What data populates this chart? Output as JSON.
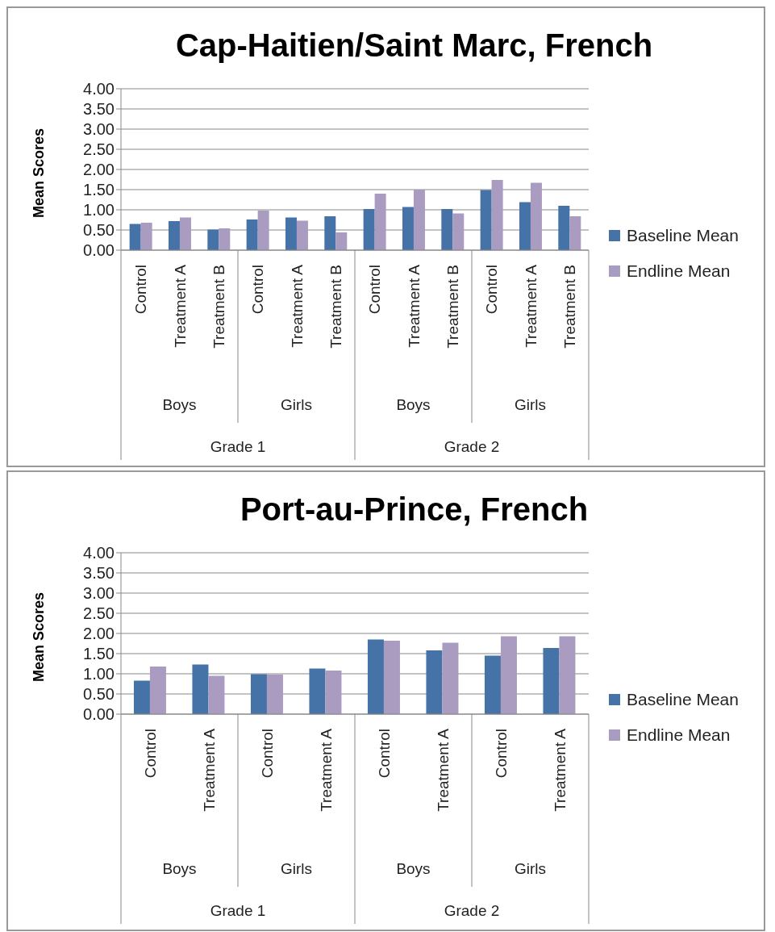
{
  "chart_data": [
    {
      "type": "bar",
      "title": "Cap-Haitien/Saint Marc, French",
      "ylabel": "Mean Scores",
      "categories": [
        "Control",
        "Treatment A",
        "Treatment B",
        "Control",
        "Treatment A",
        "Treatment B",
        "Control",
        "Treatment A",
        "Treatment B",
        "Control",
        "Treatment A",
        "Treatment B"
      ],
      "series": [
        {
          "name": "Baseline Mean",
          "color": "#4573a7",
          "values": [
            0.65,
            0.72,
            0.51,
            0.76,
            0.81,
            0.84,
            1.02,
            1.07,
            1.02,
            1.49,
            1.19,
            1.1
          ]
        },
        {
          "name": "Endline Mean",
          "color": "#aa9bc0",
          "values": [
            0.68,
            0.81,
            0.54,
            0.98,
            0.73,
            0.44,
            1.4,
            1.5,
            0.91,
            1.74,
            1.67,
            0.84
          ]
        }
      ],
      "annotations": [
        "Boys",
        "Girls",
        "Boys",
        "Girls",
        "Grade 1",
        "Grade 2"
      ],
      "ylim": [
        0,
        4
      ],
      "yticks": [
        {
          "value": 0,
          "label": "0.00"
        },
        {
          "value": 0.5,
          "label": "0.50"
        },
        {
          "value": 1,
          "label": "1.00"
        },
        {
          "value": 1.5,
          "label": "1.50"
        },
        {
          "value": 2,
          "label": "2.00"
        },
        {
          "value": 2.5,
          "label": "2.50"
        },
        {
          "value": 3,
          "label": "3.00"
        },
        {
          "value": 3.5,
          "label": "3.50"
        },
        {
          "value": 4,
          "label": "4.00"
        }
      ],
      "grid": "y",
      "legend": "right"
    },
    {
      "type": "bar",
      "title": "Port-au-Prince, French",
      "ylabel": "Mean Scores",
      "categories": [
        "Control",
        "Treatment A",
        "Control",
        "Treatment A",
        "Control",
        "Treatment A",
        "Control",
        "Treatment A"
      ],
      "series": [
        {
          "name": "Baseline Mean",
          "color": "#4573a7",
          "values": [
            0.83,
            1.23,
            0.99,
            1.13,
            1.85,
            1.58,
            1.45,
            1.64
          ]
        },
        {
          "name": "Endline Mean",
          "color": "#aa9bc0",
          "values": [
            1.18,
            0.95,
            0.98,
            1.08,
            1.82,
            1.77,
            1.93,
            1.93
          ]
        }
      ],
      "annotations": [
        "Boys",
        "Girls",
        "Boys",
        "Girls",
        "Grade 1",
        "Grade 2"
      ],
      "ylim": [
        0,
        4
      ],
      "yticks": [
        {
          "value": 0,
          "label": "0.00"
        },
        {
          "value": 0.5,
          "label": "0.50"
        },
        {
          "value": 1,
          "label": "1.00"
        },
        {
          "value": 1.5,
          "label": "1.50"
        },
        {
          "value": 2,
          "label": "2.00"
        },
        {
          "value": 2.5,
          "label": "2.50"
        },
        {
          "value": 3,
          "label": "3.00"
        },
        {
          "value": 3.5,
          "label": "3.50"
        },
        {
          "value": 4,
          "label": "4.00"
        }
      ],
      "grid": "y",
      "legend": "right"
    }
  ]
}
